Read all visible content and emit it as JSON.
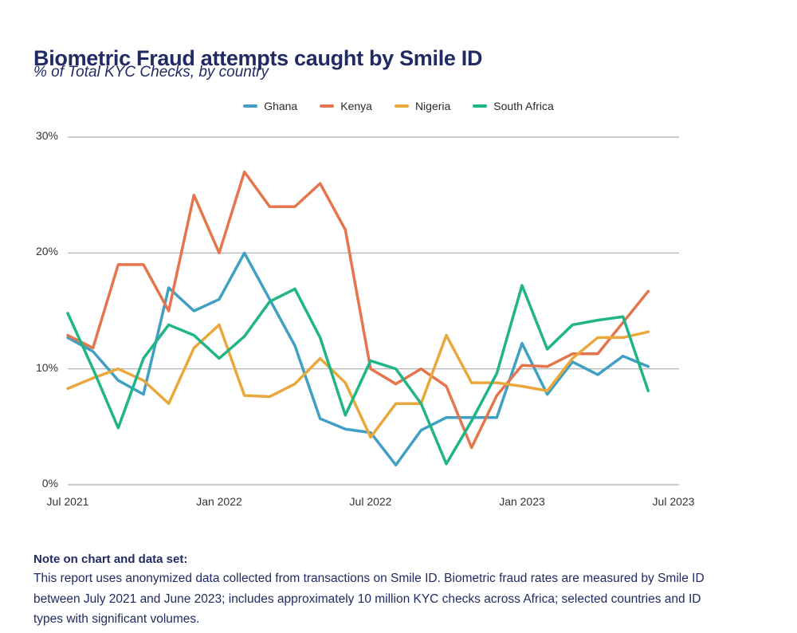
{
  "header": {
    "title": "Biometric Fraud attempts caught by Smile ID",
    "subtitle": "% of Total KYC Checks, by country"
  },
  "note": {
    "heading": "Note on chart and data set:",
    "body": "This report uses anonymized data collected from transactions on Smile ID. Biometric fraud rates are measured by Smile ID between July 2021 and June 2023; includes approximately 10 million KYC checks across Africa; selected countries and ID types with significant volumes."
  },
  "colors": {
    "title_navy": "#212B63",
    "grid": "#ADADAD",
    "axis_text": "#333333",
    "background": "#FFFFFF"
  },
  "chart_data": {
    "type": "line",
    "title": "Biometric Fraud attempts caught by Smile ID",
    "subtitle": "% of Total KYC Checks, by country",
    "unit": "percent of total KYC checks",
    "grid": "horizontal-only",
    "legend_position": "top-center",
    "x": [
      "Jul 2021",
      "Aug 2021",
      "Sep 2021",
      "Oct 2021",
      "Nov 2021",
      "Dec 2021",
      "Jan 2022",
      "Feb 2022",
      "Mar 2022",
      "Apr 2022",
      "May 2022",
      "Jun 2022",
      "Jul 2022",
      "Aug 2022",
      "Sep 2022",
      "Oct 2022",
      "Nov 2022",
      "Dec 2022",
      "Jan 2023",
      "Feb 2023",
      "Mar 2023",
      "Apr 2023",
      "May 2023",
      "Jun 2023"
    ],
    "y_axis": {
      "range": [
        0,
        30
      ],
      "ticks": [
        {
          "label": "0%",
          "value": 0
        },
        {
          "label": "10%",
          "value": 10
        },
        {
          "label": "20%",
          "value": 20
        },
        {
          "label": "30%",
          "value": 30
        }
      ]
    },
    "x_axis": {
      "ticks": [
        {
          "label": "Jul 2021",
          "month_index": 0
        },
        {
          "label": "Jan 2022",
          "month_index": 6
        },
        {
          "label": "Jul 2022",
          "month_index": 12
        },
        {
          "label": "Jan 2023",
          "month_index": 18
        },
        {
          "label": "Jul 2023",
          "month_index": 24
        }
      ]
    },
    "series": [
      {
        "name": "Ghana",
        "color": "#3FA0C4",
        "values": [
          12.7,
          11.5,
          9,
          7.8,
          17,
          15,
          16,
          20,
          16,
          12,
          5.7,
          4.8,
          4.5,
          1.7,
          4.7,
          5.8,
          5.8,
          5.8,
          12.2,
          7.8,
          10.6,
          9.5,
          11.1,
          10.2
        ]
      },
      {
        "name": "Kenya",
        "color": "#E5754D",
        "values": [
          12.9,
          11.8,
          19,
          19,
          15,
          25,
          20,
          27,
          24,
          24,
          26,
          22,
          10,
          8.7,
          10,
          8.5,
          3.2,
          7.7,
          10.3,
          10.2,
          11.3,
          11.3,
          14,
          16.7
        ]
      },
      {
        "name": "Nigeria",
        "color": "#E9A73C",
        "values": [
          8.3,
          9.2,
          10,
          9,
          7,
          11.8,
          13.8,
          7.7,
          7.6,
          8.7,
          10.9,
          8.8,
          4.1,
          7,
          7,
          12.9,
          8.8,
          8.8,
          8.5,
          8.1,
          10.9,
          12.7,
          12.7,
          13.2
        ]
      },
      {
        "name": "South Africa",
        "color": "#1FB585",
        "values": [
          14.8,
          10,
          4.9,
          10.9,
          13.8,
          12.9,
          10.9,
          12.8,
          15.8,
          16.9,
          12.7,
          6,
          10.7,
          10,
          7,
          1.8,
          5.5,
          9.6,
          17.2,
          11.7,
          13.8,
          14.2,
          14.5,
          8.1
        ]
      }
    ]
  }
}
